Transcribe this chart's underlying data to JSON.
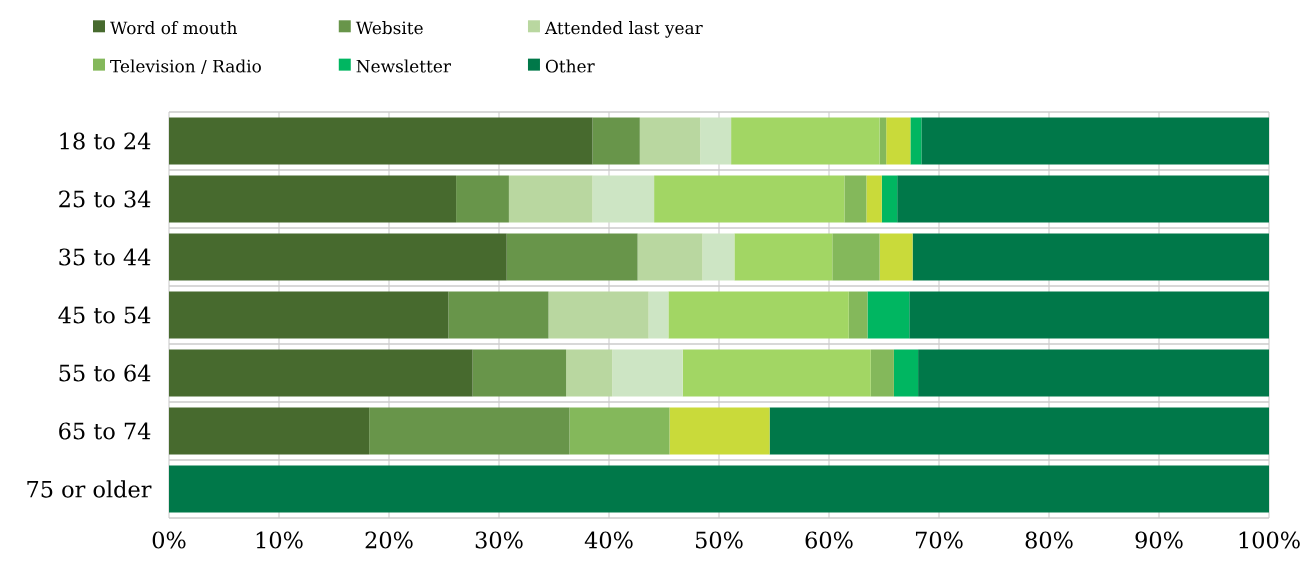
{
  "chart_data": {
    "type": "bar",
    "orientation": "horizontal",
    "stacked": true,
    "categories": [
      "18 to 24",
      "25 to 34",
      "35 to 44",
      "45 to 54",
      "55 to 64",
      "65 to 74",
      "75 or older"
    ],
    "series": [
      {
        "name": "Word of mouth",
        "color": "#476a2e",
        "values": [
          38.5,
          26.1,
          30.7,
          25.4,
          27.6,
          18.2,
          0
        ]
      },
      {
        "name": "Website",
        "color": "#68954a",
        "values": [
          4.3,
          4.8,
          11.9,
          9.1,
          8.5,
          18.2,
          0
        ]
      },
      {
        "name": "Attended last year",
        "color": "#b9d7a0",
        "values": [
          5.5,
          7.6,
          5.9,
          9.1,
          4.2,
          0,
          0
        ]
      },
      {
        "color": "#cde5c4",
        "values": [
          2.8,
          5.6,
          2.9,
          1.8,
          6.4,
          0,
          0
        ]
      },
      {
        "color": "#a2d664",
        "values": [
          13.5,
          17.3,
          8.9,
          16.4,
          17.1,
          0,
          0
        ]
      },
      {
        "name": "Television / Radio",
        "color": "#84b85b",
        "values": [
          0.6,
          2.0,
          4.3,
          1.7,
          2.1,
          9.1,
          0
        ]
      },
      {
        "color": "#c9da3a",
        "values": [
          2.2,
          1.4,
          3.0,
          0,
          0,
          9.1,
          0
        ]
      },
      {
        "name": "Newsletter",
        "color": "#00b661",
        "values": [
          1.0,
          1.4,
          0,
          3.8,
          2.2,
          0,
          0
        ]
      },
      {
        "name": "Other",
        "color": "#007849",
        "values": [
          31.6,
          33.8,
          32.4,
          32.7,
          31.9,
          45.4,
          100
        ]
      }
    ],
    "xlim": [
      0,
      100
    ],
    "xticks": [
      {
        "value": 0,
        "label": "0%"
      },
      {
        "value": 10,
        "label": "10%"
      },
      {
        "value": 20,
        "label": "20%"
      },
      {
        "value": 30,
        "label": "30%"
      },
      {
        "value": 40,
        "label": "40%"
      },
      {
        "value": 50,
        "label": "50%"
      },
      {
        "value": 60,
        "label": "60%"
      },
      {
        "value": 70,
        "label": "70%"
      },
      {
        "value": 80,
        "label": "80%"
      },
      {
        "value": 90,
        "label": "90%"
      },
      {
        "value": 100,
        "label": "100%"
      }
    ],
    "grid": true,
    "legend": "top"
  }
}
